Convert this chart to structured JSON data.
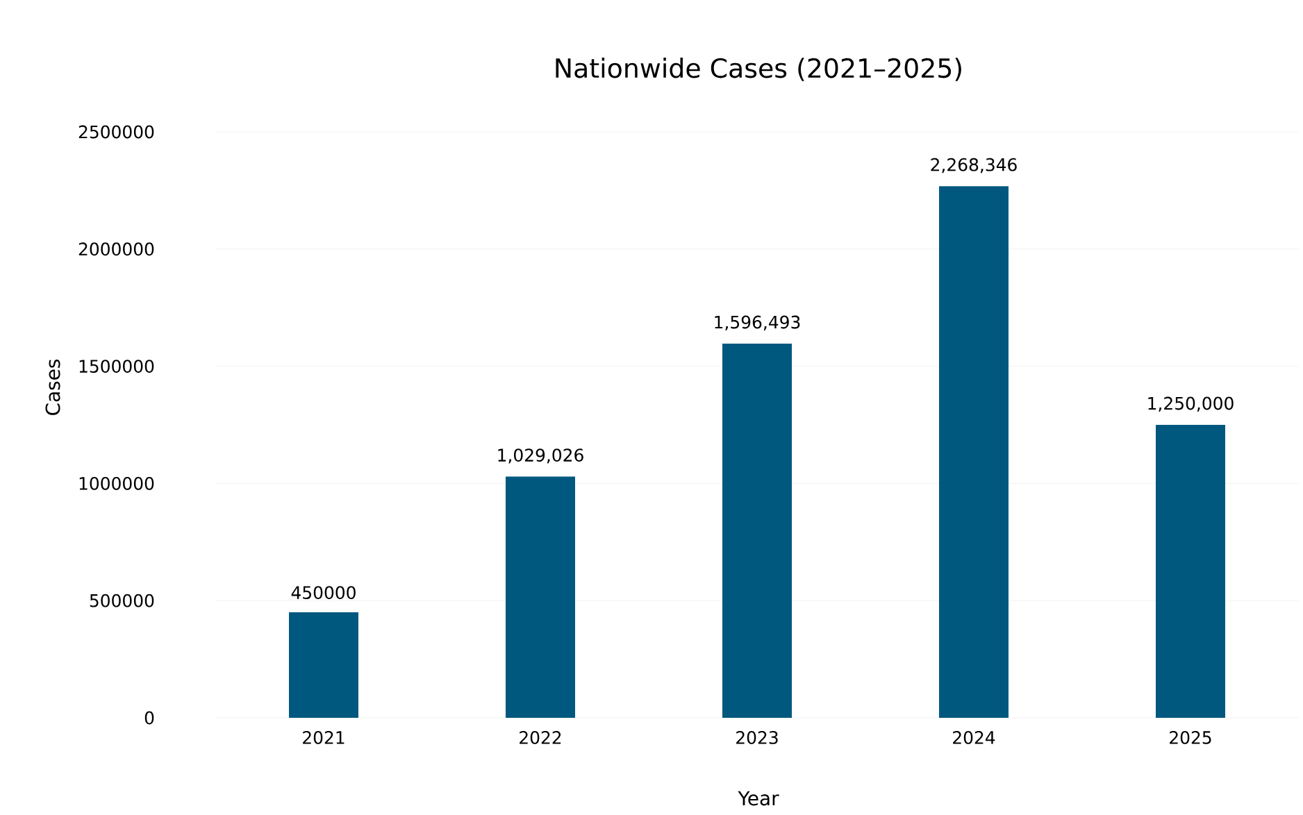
{
  "chart_data": {
    "type": "bar",
    "title": "Nationwide Cases (2021–2025)",
    "xlabel": "Year",
    "ylabel": "Cases",
    "categories": [
      "2021",
      "2022",
      "2023",
      "2024",
      "2025"
    ],
    "values": [
      450000,
      1029026,
      1596493,
      2268346,
      1250000
    ],
    "value_labels": [
      "450000",
      "1,029,026",
      "1,596,493",
      "2,268,346",
      "1,250,000"
    ],
    "color": "#00587f",
    "ylim": [
      0,
      2500000
    ],
    "yticks": [
      0,
      500000,
      1000000,
      1500000,
      2000000,
      2500000
    ],
    "grid": "y"
  }
}
